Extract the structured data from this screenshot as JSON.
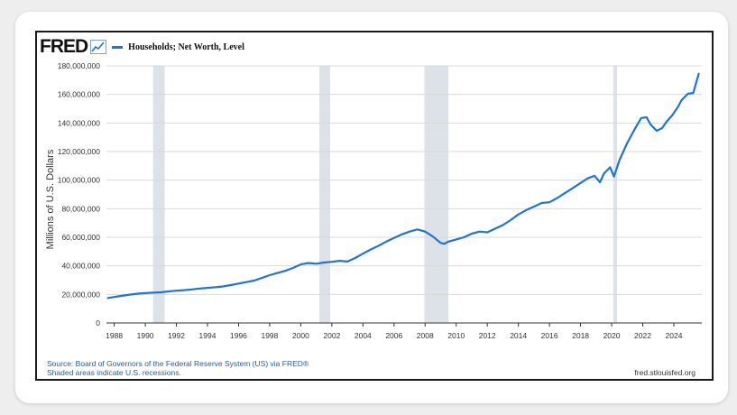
{
  "header": {
    "logo": "FRED",
    "logo_icon": "line-chart-icon",
    "series_name": "Households; Net Worth, Level"
  },
  "footer": {
    "source_line1": "Source: Board of Governors of the Federal Reserve System (US) via FRED®",
    "source_line2": "Shaded areas indicate U.S. recessions.",
    "url": "fred.stlouisfed.org"
  },
  "colors": {
    "series": "#1f74d6",
    "recession": "#dde2e8",
    "grid": "#d9d9d9"
  },
  "chart_data": {
    "type": "line",
    "title": "",
    "xlabel": "",
    "ylabel": "Millions of U.S. Dollars",
    "xlim": [
      1987.5,
      2025.8
    ],
    "ylim": [
      0,
      180000000
    ],
    "grid": "horizontal",
    "legend": "top-left",
    "x_ticks": [
      1988,
      1990,
      1992,
      1994,
      1996,
      1998,
      2000,
      2002,
      2004,
      2006,
      2008,
      2010,
      2012,
      2014,
      2016,
      2018,
      2020,
      2022,
      2024
    ],
    "y_ticks": [
      0,
      20000000,
      40000000,
      60000000,
      80000000,
      100000000,
      120000000,
      140000000,
      160000000,
      180000000
    ],
    "y_tick_labels": [
      "0",
      "20,000,000",
      "40,000,000",
      "60,000,000",
      "80,000,000",
      "100,000,000",
      "120,000,000",
      "140,000,000",
      "160,000,000",
      "180,000,000"
    ],
    "recessions": [
      [
        1990.5,
        1991.25
      ],
      [
        2001.2,
        2001.9
      ],
      [
        2007.95,
        2009.5
      ],
      [
        2020.1,
        2020.35
      ]
    ],
    "series": [
      {
        "name": "Households; Net Worth, Level",
        "x": [
          1987.6,
          1988.0,
          1988.5,
          1989.0,
          1989.5,
          1990.0,
          1990.5,
          1991.0,
          1991.5,
          1992.0,
          1992.5,
          1993.0,
          1993.5,
          1994.0,
          1994.5,
          1995.0,
          1995.5,
          1996.0,
          1996.5,
          1997.0,
          1997.5,
          1998.0,
          1998.5,
          1999.0,
          1999.5,
          2000.0,
          2000.5,
          2001.0,
          2001.5,
          2002.0,
          2002.5,
          2003.0,
          2003.5,
          2004.0,
          2004.5,
          2005.0,
          2005.5,
          2006.0,
          2006.5,
          2007.0,
          2007.5,
          2008.0,
          2008.5,
          2009.0,
          2009.25,
          2009.5,
          2010.0,
          2010.5,
          2011.0,
          2011.5,
          2012.0,
          2012.5,
          2013.0,
          2013.5,
          2014.0,
          2014.5,
          2015.0,
          2015.5,
          2016.0,
          2016.5,
          2017.0,
          2017.5,
          2018.0,
          2018.5,
          2018.9,
          2019.25,
          2019.5,
          2019.9,
          2020.15,
          2020.5,
          2021.0,
          2021.5,
          2021.9,
          2022.25,
          2022.5,
          2022.9,
          2023.25,
          2023.5,
          2023.9,
          2024.25,
          2024.5,
          2024.9,
          2025.25,
          2025.6
        ],
        "values": [
          17500000,
          18200000,
          19000000,
          19800000,
          20500000,
          20900000,
          21200000,
          21500000,
          22100000,
          22600000,
          23000000,
          23500000,
          24100000,
          24600000,
          25000000,
          25600000,
          26500000,
          27600000,
          28600000,
          29700000,
          31500000,
          33500000,
          35000000,
          36500000,
          38500000,
          41000000,
          42000000,
          41500000,
          42300000,
          42800000,
          43500000,
          43000000,
          45500000,
          48500000,
          51500000,
          54000000,
          57000000,
          59500000,
          62000000,
          64000000,
          65500000,
          64000000,
          60500000,
          56000000,
          55500000,
          57000000,
          58500000,
          60000000,
          62500000,
          64000000,
          63500000,
          66000000,
          68500000,
          72000000,
          76000000,
          79000000,
          81500000,
          84000000,
          84500000,
          87500000,
          91000000,
          94500000,
          98000000,
          101500000,
          103000000,
          98500000,
          104500000,
          109000000,
          102500000,
          114000000,
          126000000,
          136000000,
          143500000,
          144000000,
          139000000,
          134500000,
          136500000,
          140500000,
          145500000,
          151000000,
          156000000,
          160500000,
          161000000,
          174500000
        ]
      }
    ]
  }
}
